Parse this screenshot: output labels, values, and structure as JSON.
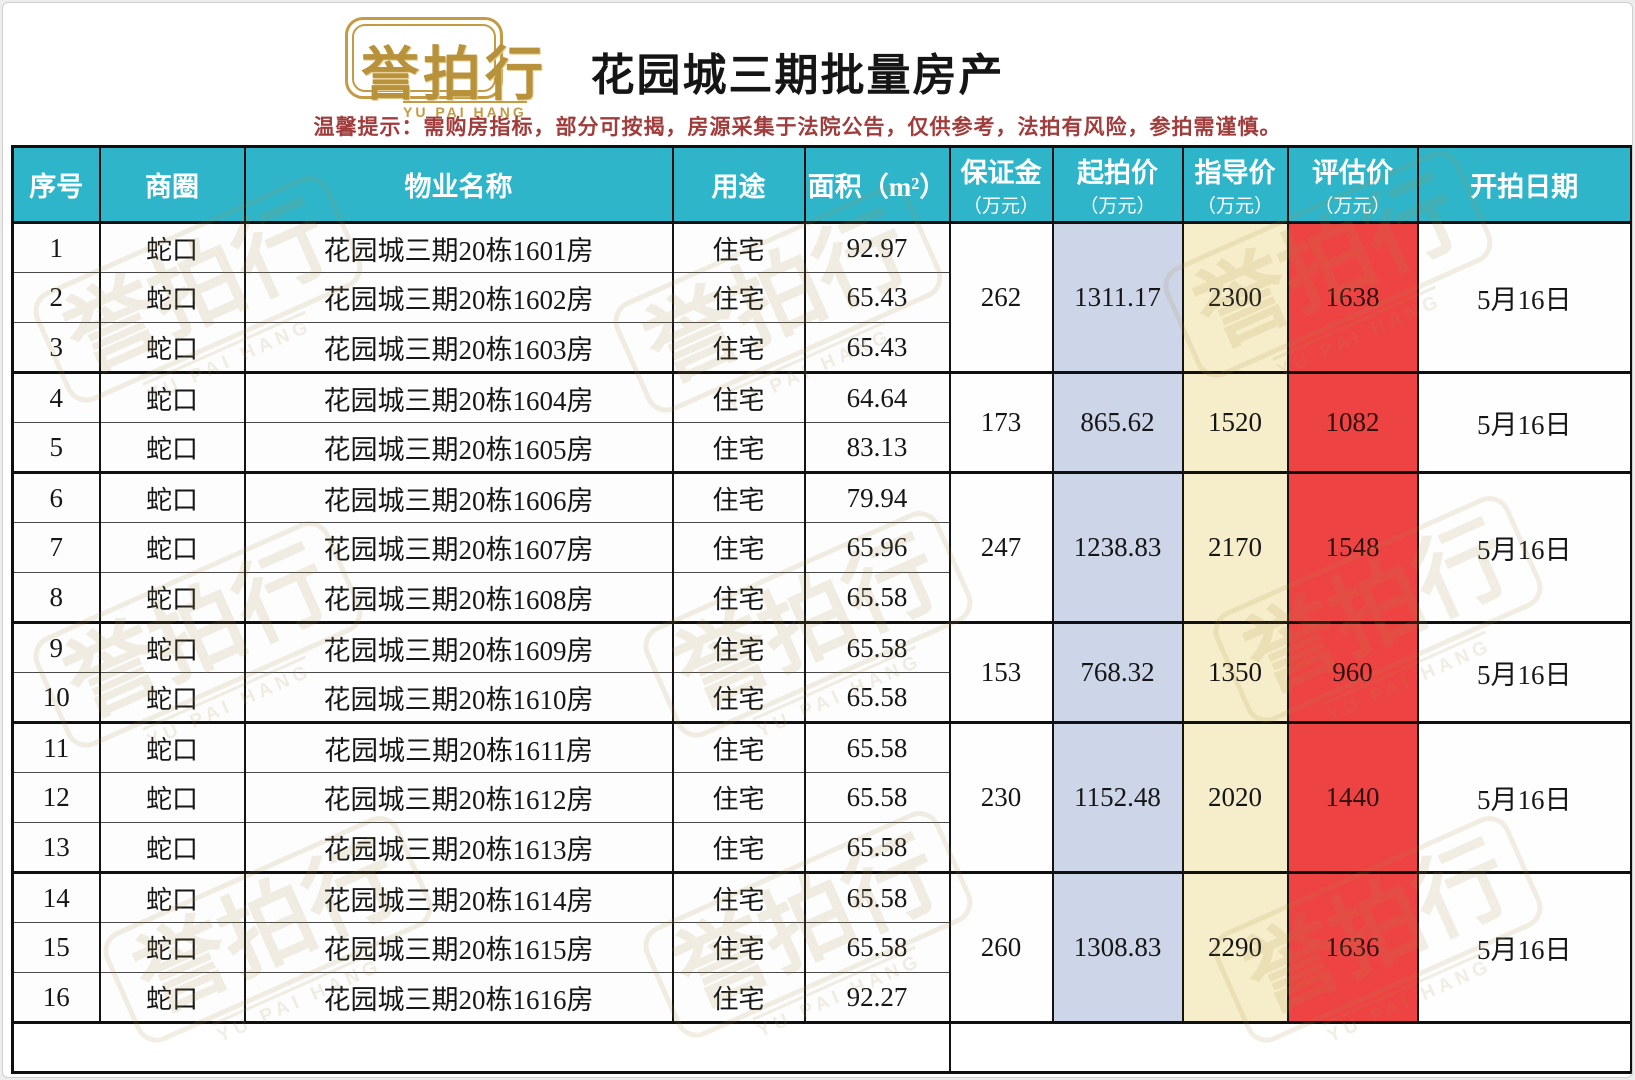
{
  "header": {
    "logo": {
      "text": "誉拍行",
      "subtext": "YU PAI HANG"
    },
    "title": "花园城三期批量房产",
    "notice": "温馨提示：需购房指标，部分可按揭，房源采集于法院公告，仅供参考，法拍有风险，参拍需谨慎。"
  },
  "colors": {
    "table_header_bg": "#2fb5c9",
    "start_price_col_bg": "#cdd5e9",
    "guide_price_col_bg": "#f6eeca",
    "eval_price_col_bg": "#ee4343",
    "notice_text": "#a03c3c",
    "logo_gold": "#b8923a"
  },
  "table": {
    "columns": [
      {
        "key": "no",
        "label": "序号"
      },
      {
        "key": "district",
        "label": "商圈"
      },
      {
        "key": "property",
        "label": "物业名称"
      },
      {
        "key": "use",
        "label": "用途"
      },
      {
        "key": "area",
        "label": "面积（m²）"
      },
      {
        "key": "deposit",
        "label": "保证金",
        "sublabel": "（万元）"
      },
      {
        "key": "start",
        "label": "起拍价",
        "sublabel": "（万元）"
      },
      {
        "key": "guide",
        "label": "指导价",
        "sublabel": "（万元）"
      },
      {
        "key": "eval",
        "label": "评估价",
        "sublabel": "（万元）"
      },
      {
        "key": "date",
        "label": "开拍日期"
      }
    ],
    "rows": [
      {
        "no": "1",
        "district": "蛇口",
        "property": "花园城三期20栋1601房",
        "use": "住宅",
        "area": "92.97"
      },
      {
        "no": "2",
        "district": "蛇口",
        "property": "花园城三期20栋1602房",
        "use": "住宅",
        "area": "65.43"
      },
      {
        "no": "3",
        "district": "蛇口",
        "property": "花园城三期20栋1603房",
        "use": "住宅",
        "area": "65.43"
      },
      {
        "no": "4",
        "district": "蛇口",
        "property": "花园城三期20栋1604房",
        "use": "住宅",
        "area": "64.64"
      },
      {
        "no": "5",
        "district": "蛇口",
        "property": "花园城三期20栋1605房",
        "use": "住宅",
        "area": "83.13"
      },
      {
        "no": "6",
        "district": "蛇口",
        "property": "花园城三期20栋1606房",
        "use": "住宅",
        "area": "79.94"
      },
      {
        "no": "7",
        "district": "蛇口",
        "property": "花园城三期20栋1607房",
        "use": "住宅",
        "area": "65.96"
      },
      {
        "no": "8",
        "district": "蛇口",
        "property": "花园城三期20栋1608房",
        "use": "住宅",
        "area": "65.58"
      },
      {
        "no": "9",
        "district": "蛇口",
        "property": "花园城三期20栋1609房",
        "use": "住宅",
        "area": "65.58"
      },
      {
        "no": "10",
        "district": "蛇口",
        "property": "花园城三期20栋1610房",
        "use": "住宅",
        "area": "65.58"
      },
      {
        "no": "11",
        "district": "蛇口",
        "property": "花园城三期20栋1611房",
        "use": "住宅",
        "area": "65.58"
      },
      {
        "no": "12",
        "district": "蛇口",
        "property": "花园城三期20栋1612房",
        "use": "住宅",
        "area": "65.58"
      },
      {
        "no": "13",
        "district": "蛇口",
        "property": "花园城三期20栋1613房",
        "use": "住宅",
        "area": "65.58"
      },
      {
        "no": "14",
        "district": "蛇口",
        "property": "花园城三期20栋1614房",
        "use": "住宅",
        "area": "65.58"
      },
      {
        "no": "15",
        "district": "蛇口",
        "property": "花园城三期20栋1615房",
        "use": "住宅",
        "area": "65.58"
      },
      {
        "no": "16",
        "district": "蛇口",
        "property": "花园城三期20栋1616房",
        "use": "住宅",
        "area": "92.27"
      }
    ],
    "groups": [
      {
        "row_start": 1,
        "row_end": 3,
        "deposit": "262",
        "start_price": "1311.17",
        "guide_price": "2300",
        "eval_price": "1638",
        "date": "5月16日"
      },
      {
        "row_start": 4,
        "row_end": 5,
        "deposit": "173",
        "start_price": "865.62",
        "guide_price": "1520",
        "eval_price": "1082",
        "date": "5月16日"
      },
      {
        "row_start": 6,
        "row_end": 8,
        "deposit": "247",
        "start_price": "1238.83",
        "guide_price": "2170",
        "eval_price": "1548",
        "date": "5月16日"
      },
      {
        "row_start": 9,
        "row_end": 10,
        "deposit": "153",
        "start_price": "768.32",
        "guide_price": "1350",
        "eval_price": "960",
        "date": "5月16日"
      },
      {
        "row_start": 11,
        "row_end": 13,
        "deposit": "230",
        "start_price": "1152.48",
        "guide_price": "2020",
        "eval_price": "1440",
        "date": "5月16日"
      },
      {
        "row_start": 14,
        "row_end": 16,
        "deposit": "260",
        "start_price": "1308.83",
        "guide_price": "2290",
        "eval_price": "1636",
        "date": "5月16日"
      }
    ]
  }
}
